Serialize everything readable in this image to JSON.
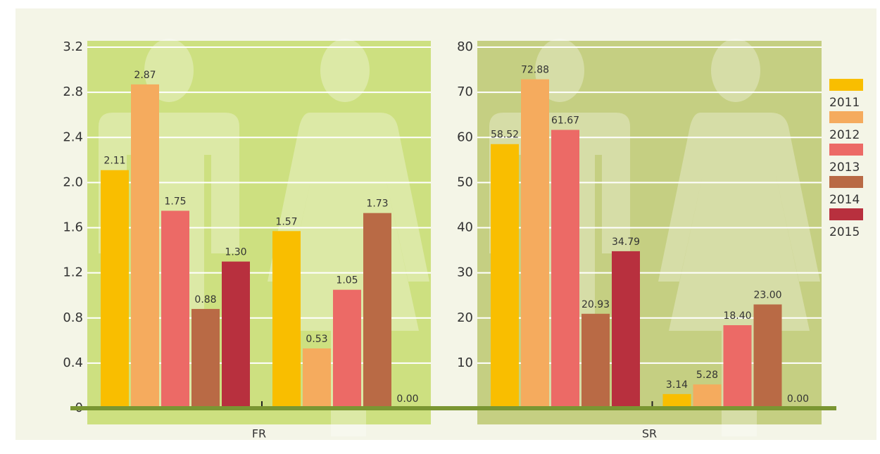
{
  "chart_data": [
    {
      "type": "bar",
      "xlabel": "FR",
      "categories": [
        null,
        null
      ],
      "series": [
        {
          "name": "2011",
          "color": "#f9be00",
          "values": [
            2.11,
            1.57
          ],
          "value_labels": [
            "2.11",
            "1.57"
          ]
        },
        {
          "name": "2012",
          "color": "#f5ab5e",
          "values": [
            2.87,
            0.53
          ],
          "value_labels": [
            "2.87",
            "0.53"
          ]
        },
        {
          "name": "2013",
          "color": "#ec6a66",
          "values": [
            1.75,
            1.05
          ],
          "value_labels": [
            "1.75",
            "1.05"
          ]
        },
        {
          "name": "2014",
          "color": "#b96a45",
          "values": [
            0.88,
            1.73
          ],
          "value_labels": [
            "0.88",
            "1.73"
          ]
        },
        {
          "name": "2015",
          "color": "#b8303e",
          "values": [
            1.3,
            0
          ],
          "value_labels": [
            "1.30",
            "0.00"
          ]
        }
      ],
      "ylim": [
        0,
        3.2
      ],
      "yticks": [
        0,
        0.4,
        0.8,
        1.2,
        1.6,
        {
          "value": 2,
          "label": "2.0"
        },
        2.4,
        2.8,
        3.2
      ],
      "grid": true,
      "panel_color": "#cde080"
    },
    {
      "type": "bar",
      "xlabel": "SR",
      "categories": [
        null,
        null
      ],
      "series": [
        {
          "color": "#f9be00",
          "values": [
            58.52,
            3.14
          ],
          "value_labels": [
            "58.52",
            "3.14"
          ]
        },
        {
          "color": "#f5ab5e",
          "values": [
            72.88,
            5.28
          ],
          "value_labels": [
            "72.88",
            "5.28"
          ]
        },
        {
          "color": "#ec6a66",
          "values": [
            61.67,
            18.4
          ],
          "value_labels": [
            "61.67",
            "18.40"
          ]
        },
        {
          "color": "#b96a45",
          "values": [
            20.93,
            23
          ],
          "value_labels": [
            "20.93",
            "23.00"
          ]
        },
        {
          "color": "#b8303e",
          "values": [
            34.79,
            0
          ],
          "value_labels": [
            "34.79",
            "0.00"
          ]
        }
      ],
      "ylim": [
        0,
        80
      ],
      "yticks": [
        10,
        20,
        30,
        40,
        50,
        60,
        70,
        80
      ],
      "grid": true,
      "panel_color": "#c5cf82"
    }
  ]
}
